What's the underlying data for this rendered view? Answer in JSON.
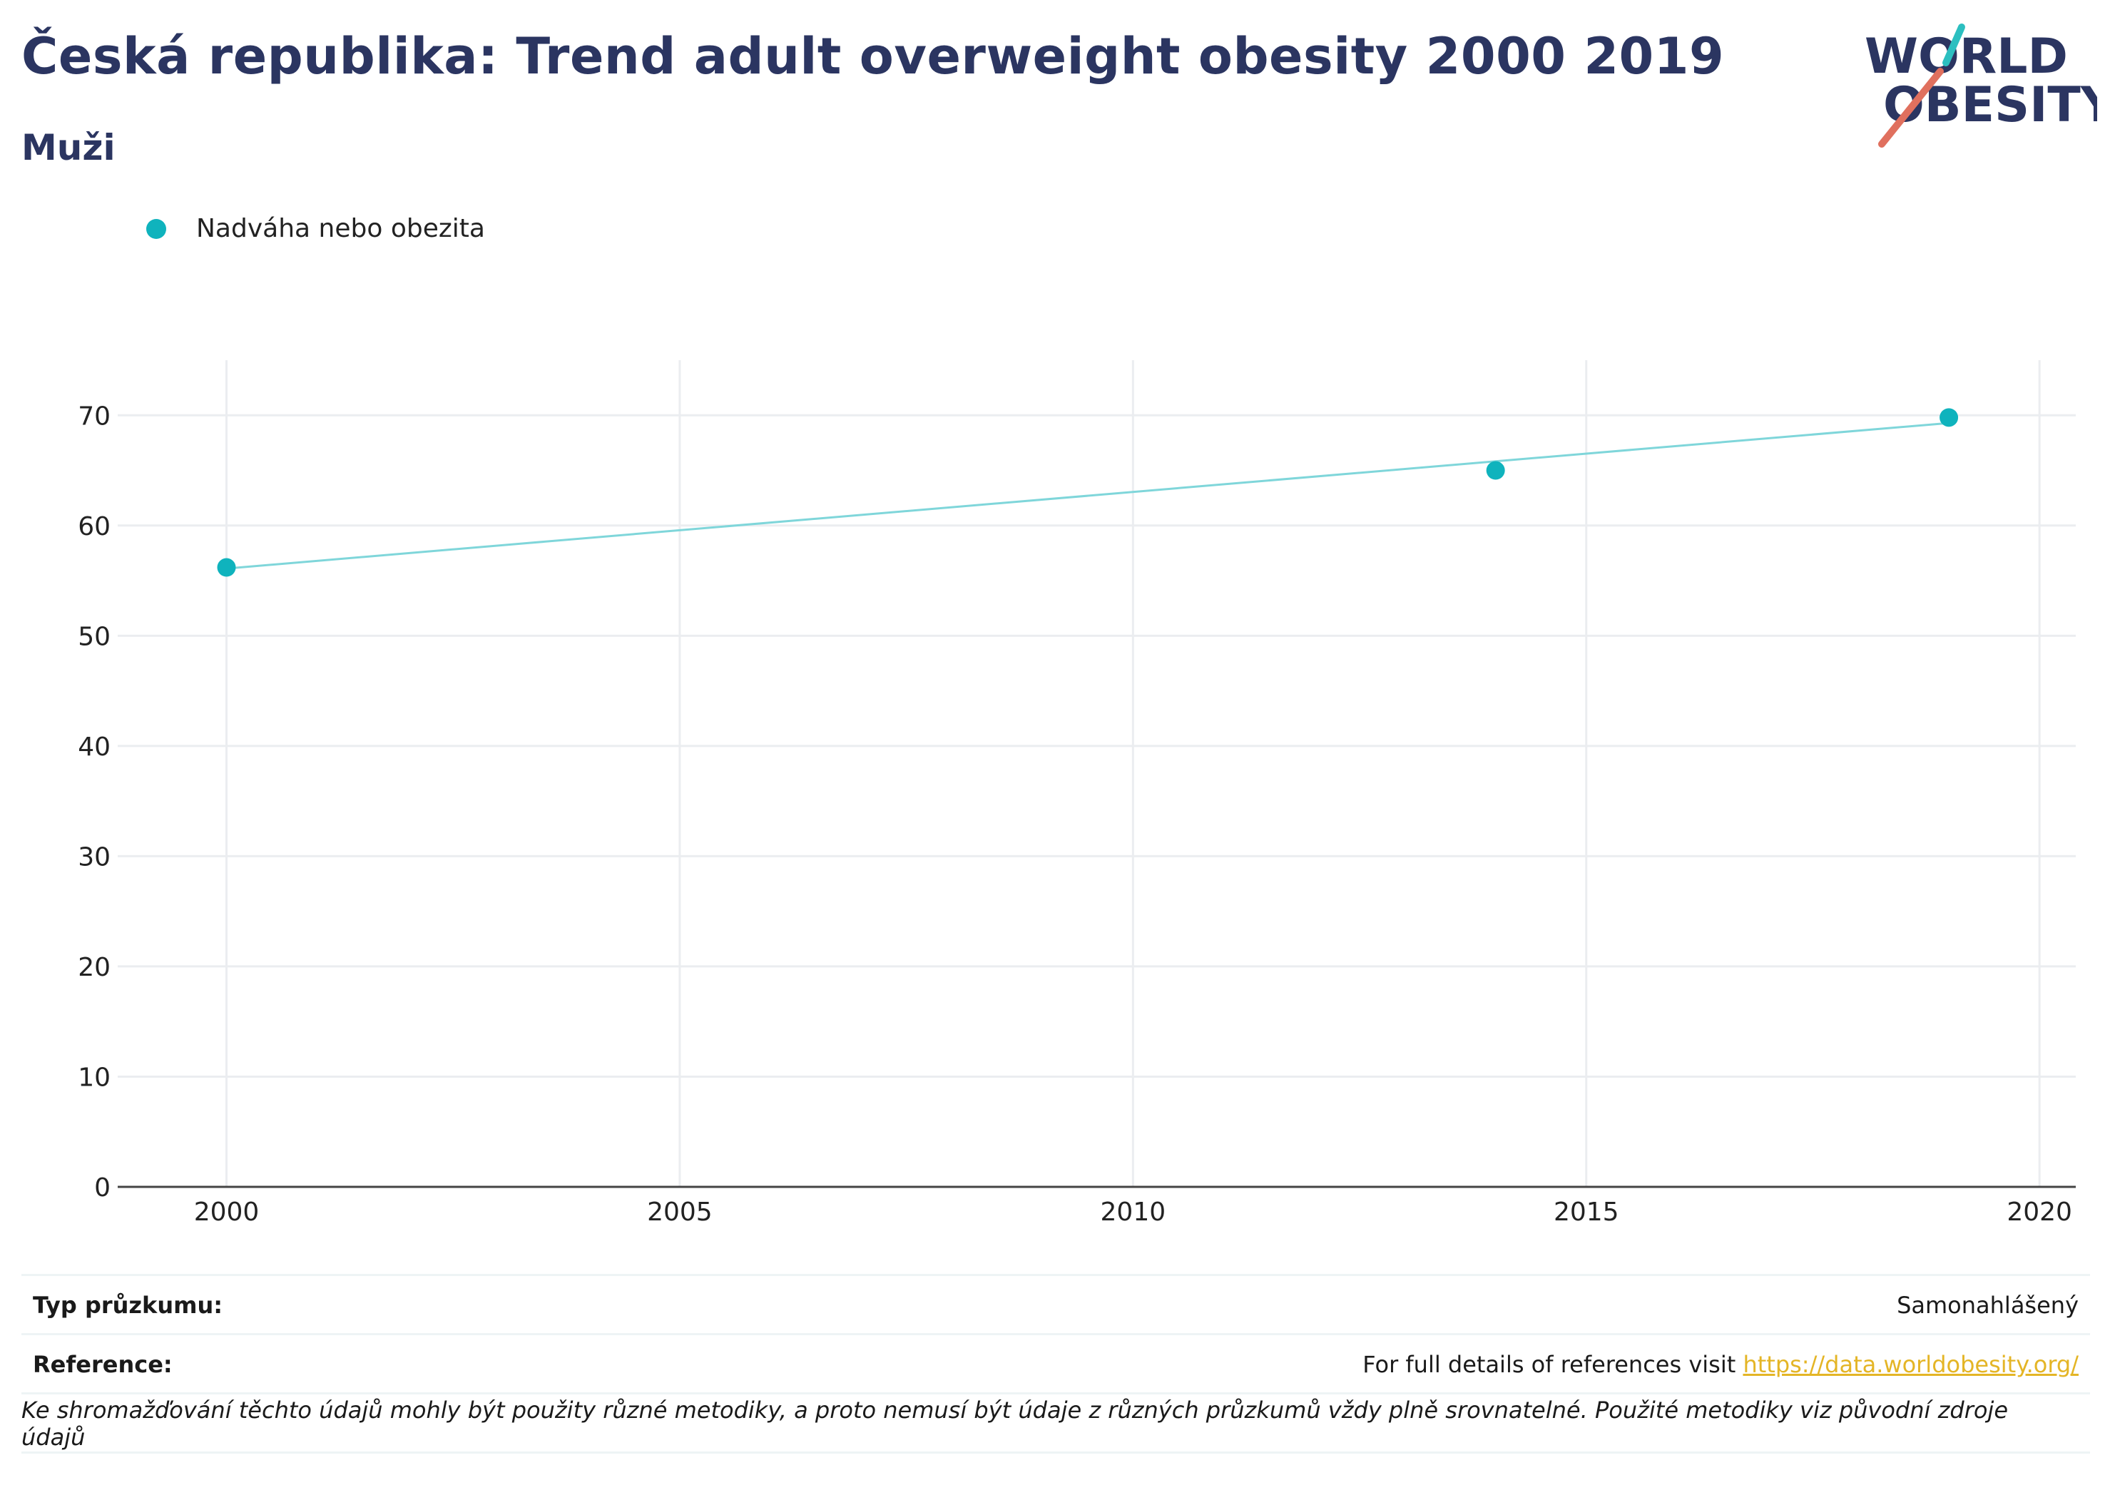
{
  "title": "Česká republika: Trend adult overweight obesity 2000 2019",
  "subtitle": "Muži",
  "logo": {
    "line1": "WORLD",
    "line2": "OBESITY"
  },
  "legend": {
    "label": "Nadváha nebo obezita",
    "color": "#0fb3bd"
  },
  "chart_data": {
    "type": "scatter",
    "title": "",
    "xlabel": "",
    "ylabel": "",
    "xlim": [
      1998.8,
      2020.4
    ],
    "ylim": [
      0,
      75
    ],
    "x_ticks": [
      2000,
      2005,
      2010,
      2015,
      2020
    ],
    "y_ticks": [
      0,
      10,
      20,
      30,
      40,
      50,
      60,
      70
    ],
    "grid": true,
    "legend_position": "top-left",
    "series": [
      {
        "name": "Nadváha nebo obezita",
        "color": "#0fb3bd",
        "points": [
          {
            "x": 2000,
            "y": 56.2
          },
          {
            "x": 2014,
            "y": 65.0
          },
          {
            "x": 2019,
            "y": 69.8
          }
        ],
        "trendline": {
          "x_start": 2000,
          "y_start": 56.1,
          "x_end": 2019,
          "y_end": 69.3,
          "color": "#7fd6da"
        }
      }
    ]
  },
  "footer": {
    "survey_label": "Typ průzkumu:",
    "survey_value": "Samonahlášený",
    "reference_label": "Reference:",
    "reference_text": "For full details of references visit ",
    "reference_link": "https://data.worldobesity.org/",
    "note": "Ke shromažďování těchto údajů mohly být použity různé metodiky, a proto nemusí být údaje z různých průzkumů vždy plně srovnatelné. Použité metodiky viz původní zdroje údajů"
  }
}
